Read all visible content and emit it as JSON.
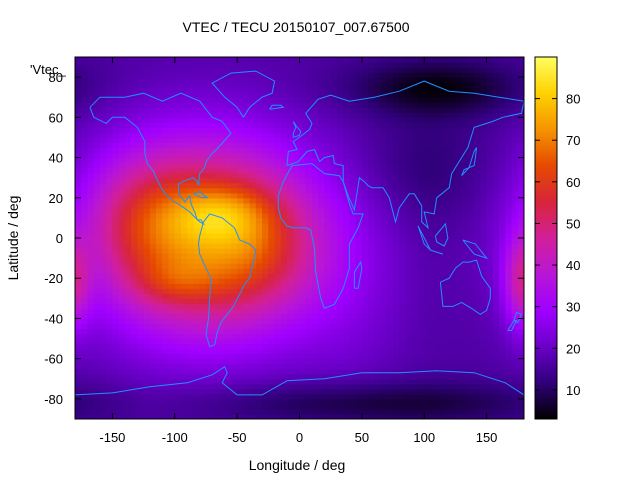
{
  "chart_data": {
    "type": "heatmap",
    "title": "VTEC / TECU 20150107_007.67500",
    "xlabel": "Longitude / deg",
    "ylabel": "Latitude / deg",
    "series_key": "'Vtec_",
    "xlim": [
      -180,
      180
    ],
    "ylim": [
      -90,
      90
    ],
    "x_ticks": [
      -150,
      -100,
      -50,
      0,
      50,
      100,
      150
    ],
    "y_ticks": [
      -80,
      -60,
      -40,
      -20,
      0,
      20,
      40,
      60,
      80
    ],
    "colorbar": {
      "min": 3,
      "max": 90,
      "ticks": [
        10,
        20,
        30,
        40,
        50,
        60,
        70,
        80
      ]
    },
    "grid": false,
    "colormap": [
      "#000000",
      "#30007a",
      "#6a00c8",
      "#a000ff",
      "#b816d6",
      "#d21f9a",
      "#d8253a",
      "#e64a00",
      "#f59400",
      "#ffd200",
      "#ffff60"
    ],
    "field": {
      "background": 16,
      "blobs": [
        {
          "lon": -75,
          "lat": 0,
          "slon": 60,
          "slat": 34,
          "amp": 52
        },
        {
          "lon": -65,
          "lat": 12,
          "slon": 28,
          "slat": 10,
          "amp": 14
        },
        {
          "lon": -100,
          "lat": -22,
          "slon": 24,
          "slat": 8,
          "amp": 8
        },
        {
          "lon": -130,
          "lat": 10,
          "slon": 30,
          "slat": 22,
          "amp": 12
        },
        {
          "lon": -30,
          "lat": -5,
          "slon": 30,
          "slat": 20,
          "amp": 10
        },
        {
          "lon": 178,
          "lat": -22,
          "slon": 10,
          "slat": 16,
          "amp": 22
        },
        {
          "lon": 40,
          "lat": -20,
          "slon": 35,
          "slat": 40,
          "amp": 6
        },
        {
          "lon": 110,
          "lat": 75,
          "slon": 50,
          "slat": 10,
          "amp": -12
        },
        {
          "lon": 100,
          "lat": 35,
          "slon": 40,
          "slat": 20,
          "amp": -5
        },
        {
          "lon": 60,
          "lat": -82,
          "slon": 100,
          "slat": 8,
          "amp": -10
        }
      ]
    }
  },
  "coastlines": [
    [
      [
        -168,
        65
      ],
      [
        -160,
        70
      ],
      [
        -140,
        70
      ],
      [
        -125,
        72
      ],
      [
        -110,
        68
      ],
      [
        -95,
        72
      ],
      [
        -80,
        68
      ],
      [
        -70,
        60
      ],
      [
        -62,
        58
      ],
      [
        -55,
        52
      ],
      [
        -65,
        45
      ],
      [
        -70,
        42
      ],
      [
        -75,
        38
      ],
      [
        -76,
        35
      ],
      [
        -80,
        32
      ],
      [
        -81,
        26
      ],
      [
        -82,
        28
      ],
      [
        -85,
        30
      ],
      [
        -90,
        29
      ],
      [
        -97,
        27
      ],
      [
        -97,
        22
      ],
      [
        -92,
        18
      ],
      [
        -88,
        21
      ],
      [
        -87,
        17
      ],
      [
        -84,
        13
      ],
      [
        -82,
        9
      ],
      [
        -79,
        9
      ],
      [
        -77,
        7
      ],
      [
        -80,
        8
      ],
      [
        -85,
        11
      ],
      [
        -88,
        13
      ],
      [
        -95,
        16
      ],
      [
        -105,
        20
      ],
      [
        -110,
        24
      ],
      [
        -115,
        30
      ],
      [
        -117,
        33
      ],
      [
        -122,
        37
      ],
      [
        -124,
        42
      ],
      [
        -124,
        48
      ],
      [
        -130,
        55
      ],
      [
        -140,
        60
      ],
      [
        -150,
        60
      ],
      [
        -155,
        57
      ],
      [
        -165,
        60
      ],
      [
        -168,
        65
      ]
    ],
    [
      [
        -77,
        8
      ],
      [
        -72,
        12
      ],
      [
        -62,
        10
      ],
      [
        -52,
        5
      ],
      [
        -48,
        -1
      ],
      [
        -40,
        -3
      ],
      [
        -35,
        -6
      ],
      [
        -37,
        -12
      ],
      [
        -40,
        -20
      ],
      [
        -44,
        -23
      ],
      [
        -48,
        -28
      ],
      [
        -53,
        -34
      ],
      [
        -58,
        -38
      ],
      [
        -63,
        -42
      ],
      [
        -66,
        -47
      ],
      [
        -68,
        -53
      ],
      [
        -72,
        -54
      ],
      [
        -75,
        -48
      ],
      [
        -73,
        -40
      ],
      [
        -72,
        -30
      ],
      [
        -71,
        -20
      ],
      [
        -75,
        -15
      ],
      [
        -80,
        -8
      ],
      [
        -81,
        -3
      ],
      [
        -80,
        1
      ],
      [
        -77,
        8
      ]
    ],
    [
      [
        -45,
        60
      ],
      [
        -40,
        65
      ],
      [
        -30,
        70
      ],
      [
        -22,
        72
      ],
      [
        -20,
        78
      ],
      [
        -35,
        83
      ],
      [
        -55,
        82
      ],
      [
        -70,
        77
      ],
      [
        -60,
        70
      ],
      [
        -50,
        65
      ],
      [
        -45,
        60
      ]
    ],
    [
      [
        -17,
        15
      ],
      [
        -17,
        21
      ],
      [
        -13,
        28
      ],
      [
        -6,
        36
      ],
      [
        10,
        37
      ],
      [
        20,
        32
      ],
      [
        32,
        31
      ],
      [
        35,
        28
      ],
      [
        40,
        17
      ],
      [
        43,
        12
      ],
      [
        51,
        12
      ],
      [
        47,
        5
      ],
      [
        40,
        -3
      ],
      [
        40,
        -15
      ],
      [
        35,
        -25
      ],
      [
        28,
        -33
      ],
      [
        20,
        -35
      ],
      [
        17,
        -30
      ],
      [
        13,
        -17
      ],
      [
        12,
        -5
      ],
      [
        9,
        4
      ],
      [
        5,
        5
      ],
      [
        -5,
        5
      ],
      [
        -10,
        6
      ],
      [
        -15,
        10
      ],
      [
        -17,
        15
      ]
    ],
    [
      [
        -10,
        36
      ],
      [
        -9,
        43
      ],
      [
        -2,
        44
      ],
      [
        -5,
        48
      ],
      [
        2,
        51
      ],
      [
        8,
        54
      ],
      [
        10,
        57
      ],
      [
        5,
        62
      ],
      [
        15,
        69
      ],
      [
        25,
        71
      ],
      [
        40,
        68
      ],
      [
        60,
        70
      ],
      [
        80,
        73
      ],
      [
        100,
        78
      ],
      [
        120,
        73
      ],
      [
        140,
        72
      ],
      [
        160,
        70
      ],
      [
        180,
        68
      ],
      [
        178,
        62
      ],
      [
        163,
        60
      ],
      [
        155,
        58
      ],
      [
        140,
        55
      ],
      [
        135,
        45
      ],
      [
        128,
        38
      ],
      [
        122,
        32
      ],
      [
        120,
        25
      ],
      [
        110,
        20
      ],
      [
        108,
        12
      ],
      [
        100,
        13
      ],
      [
        103,
        5
      ],
      [
        98,
        8
      ],
      [
        98,
        16
      ],
      [
        92,
        22
      ],
      [
        88,
        22
      ],
      [
        80,
        15
      ],
      [
        77,
        8
      ],
      [
        72,
        20
      ],
      [
        67,
        25
      ],
      [
        58,
        25
      ],
      [
        55,
        26
      ],
      [
        52,
        28
      ],
      [
        48,
        30
      ],
      [
        44,
        14
      ],
      [
        39,
        21
      ],
      [
        35,
        28
      ],
      [
        35,
        36
      ],
      [
        28,
        37
      ],
      [
        27,
        41
      ],
      [
        20,
        40
      ],
      [
        16,
        38
      ],
      [
        12,
        44
      ],
      [
        6,
        43
      ],
      [
        -1,
        38
      ],
      [
        -10,
        36
      ]
    ],
    [
      [
        113,
        -22
      ],
      [
        115,
        -34
      ],
      [
        123,
        -34
      ],
      [
        130,
        -32
      ],
      [
        138,
        -35
      ],
      [
        145,
        -38
      ],
      [
        150,
        -36
      ],
      [
        153,
        -30
      ],
      [
        153,
        -25
      ],
      [
        146,
        -19
      ],
      [
        142,
        -11
      ],
      [
        136,
        -12
      ],
      [
        131,
        -12
      ],
      [
        125,
        -15
      ],
      [
        120,
        -20
      ],
      [
        113,
        -22
      ]
    ],
    [
      [
        -180,
        -78
      ],
      [
        -150,
        -77
      ],
      [
        -120,
        -74
      ],
      [
        -90,
        -72
      ],
      [
        -70,
        -68
      ],
      [
        -60,
        -64
      ],
      [
        -58,
        -67
      ],
      [
        -62,
        -72
      ],
      [
        -50,
        -78
      ],
      [
        -30,
        -78
      ],
      [
        -10,
        -71
      ],
      [
        20,
        -70
      ],
      [
        50,
        -67
      ],
      [
        80,
        -67
      ],
      [
        110,
        -66
      ],
      [
        140,
        -67
      ],
      [
        165,
        -72
      ],
      [
        180,
        -78
      ]
    ],
    [
      [
        44,
        -25
      ],
      [
        47,
        -25
      ],
      [
        50,
        -15
      ],
      [
        49,
        -12
      ],
      [
        44,
        -17
      ],
      [
        44,
        -25
      ]
    ],
    [
      [
        -5,
        50
      ],
      [
        0,
        51
      ],
      [
        1,
        53
      ],
      [
        -3,
        56
      ],
      [
        -5,
        58
      ],
      [
        -3,
        55
      ],
      [
        -5,
        52
      ],
      [
        -5,
        50
      ]
    ],
    [
      [
        130,
        31
      ],
      [
        132,
        34
      ],
      [
        140,
        36
      ],
      [
        141,
        40
      ],
      [
        142,
        45
      ],
      [
        140,
        43
      ],
      [
        136,
        35
      ],
      [
        130,
        31
      ]
    ],
    [
      [
        95,
        6
      ],
      [
        105,
        -6
      ],
      [
        100,
        -3
      ],
      [
        95,
        6
      ]
    ],
    [
      [
        105,
        -6
      ],
      [
        115,
        -8
      ],
      [
        110,
        -7
      ],
      [
        105,
        -6
      ]
    ],
    [
      [
        109,
        1
      ],
      [
        117,
        7
      ],
      [
        119,
        0
      ],
      [
        116,
        -4
      ],
      [
        110,
        -2
      ],
      [
        109,
        1
      ]
    ],
    [
      [
        131,
        -1
      ],
      [
        141,
        -3
      ],
      [
        150,
        -10
      ],
      [
        140,
        -8
      ],
      [
        131,
        -1
      ]
    ],
    [
      [
        -24,
        64
      ],
      [
        -13,
        65
      ],
      [
        -15,
        66
      ],
      [
        -22,
        66
      ],
      [
        -24,
        64
      ]
    ],
    [
      [
        172,
        -41
      ],
      [
        174,
        -37
      ],
      [
        178,
        -38
      ],
      [
        175,
        -42
      ],
      [
        172,
        -41
      ]
    ],
    [
      [
        167,
        -46
      ],
      [
        172,
        -41
      ],
      [
        174,
        -41
      ],
      [
        170,
        -46
      ],
      [
        167,
        -46
      ]
    ],
    [
      [
        -85,
        22
      ],
      [
        -80,
        23
      ],
      [
        -74,
        20
      ],
      [
        -78,
        20
      ],
      [
        -85,
        22
      ]
    ]
  ]
}
